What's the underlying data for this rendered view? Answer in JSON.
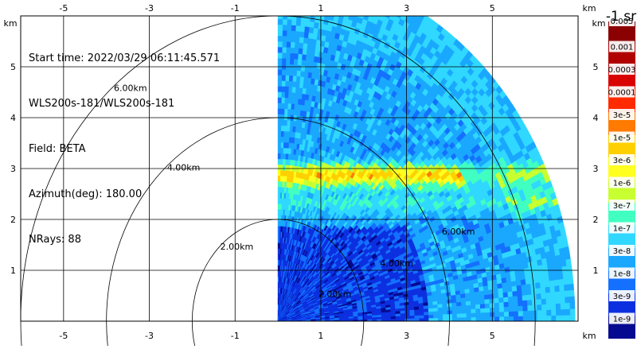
{
  "chart_data": {
    "type": "heatmap",
    "subtype": "polar-rhi-scan",
    "axis_unit_label": "km",
    "x_ticks": [
      -5,
      -3,
      -1,
      1,
      3,
      5
    ],
    "y_ticks": [
      1,
      2,
      3,
      4,
      5
    ],
    "xlim": [
      -6.0,
      7.0
    ],
    "ylim": [
      0,
      6.0
    ],
    "range_rings_km": [
      2,
      4,
      6
    ],
    "range_ring_labels": [
      "2.00km",
      "4.00km",
      "6.00km"
    ],
    "azimuth_deg": 180.0,
    "n_rays": 88,
    "sector_elevation_deg": [
      0,
      90
    ],
    "max_range_km": 6.85,
    "features": [
      {
        "name": "aerosol layer",
        "height_km": 2.85,
        "level": "1e-5"
      },
      {
        "name": "near-surface layer",
        "height_km": 1.0,
        "level": "1e-8"
      }
    ],
    "colorbar": {
      "unit": "-1 sr",
      "labels": [
        "0.005",
        "0.001",
        "0.0003",
        "0.0001",
        "3e-5",
        "1e-5",
        "3e-6",
        "1e-6",
        "3e-7",
        "1e-7",
        "3e-8",
        "1e-8",
        "3e-9",
        "1e-9"
      ],
      "colors": [
        "#8b0000",
        "#b00000",
        "#d80000",
        "#ff2a00",
        "#ff7a00",
        "#ffd000",
        "#ffff20",
        "#c8ff30",
        "#40ffc0",
        "#30d8ff",
        "#1aa8ff",
        "#1470ff",
        "#0c30e0",
        "#060a90"
      ]
    }
  },
  "info": {
    "start_time": "Start time: 2022/03/29 06:11:45.571",
    "instrument": "WLS200s-181/WLS200s-181",
    "field": "Field: BETA",
    "azimuth": "Azimuth(deg): 180.00",
    "nrays": "NRays: 88"
  },
  "colors": {
    "background_field": "#1e90ff",
    "grid": "#000000"
  }
}
